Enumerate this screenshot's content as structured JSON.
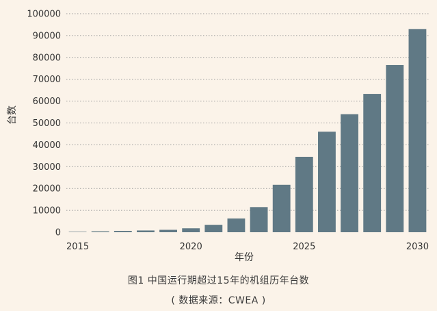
{
  "chart_data": {
    "type": "bar",
    "categories": [
      "2015",
      "2016",
      "2017",
      "2018",
      "2019",
      "2020",
      "2021",
      "2022",
      "2023",
      "2024",
      "2025",
      "2026",
      "2027",
      "2028",
      "2029",
      "2030"
    ],
    "values": [
      200,
      400,
      600,
      800,
      1100,
      1800,
      3400,
      6300,
      11500,
      21700,
      34500,
      46000,
      54000,
      63300,
      76500,
      93000
    ],
    "x_tick_labels": [
      "2015",
      "2020",
      "2025",
      "2030"
    ],
    "y_ticks": [
      0,
      10000,
      20000,
      30000,
      40000,
      50000,
      60000,
      70000,
      80000,
      90000,
      100000
    ],
    "ylim": [
      0,
      100000
    ],
    "xlabel": "年份",
    "ylabel": "台数",
    "grid": "horizontal-dotted",
    "bar_color": "#607985"
  },
  "caption": {
    "title": "图1 中国运行期超过15年的机组历年台数",
    "source": "( 数据来源：CWEA )"
  }
}
